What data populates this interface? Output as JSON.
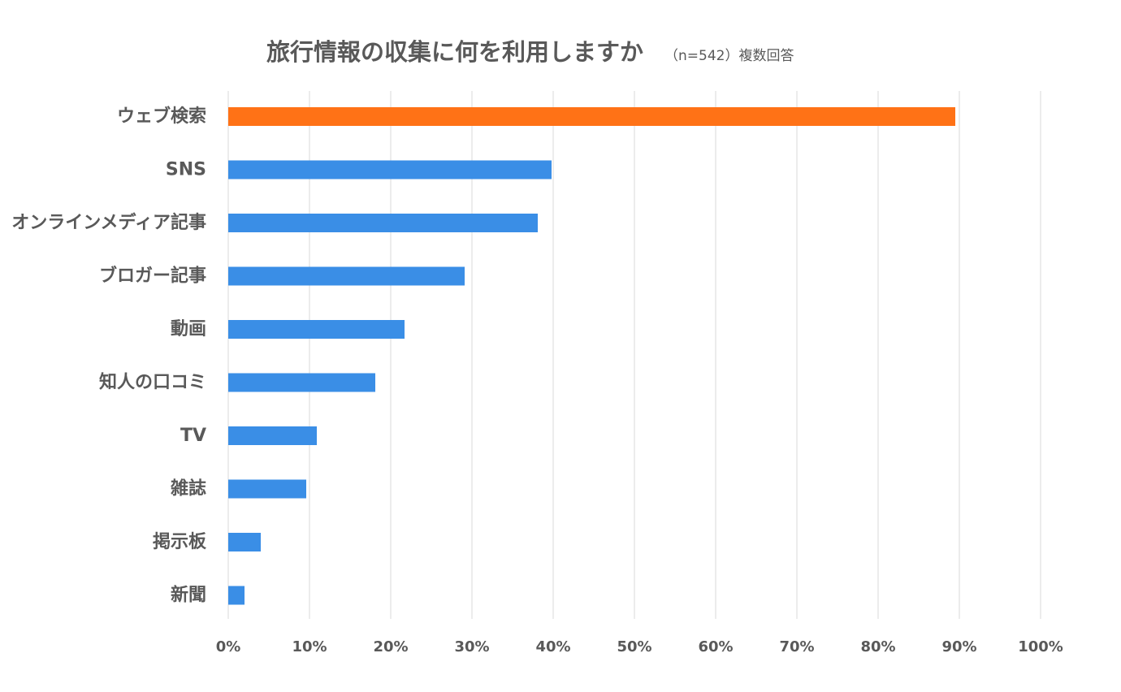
{
  "chart_data": {
    "type": "bar",
    "orientation": "horizontal",
    "title": "旅行情報の収集に何を利用しますか",
    "subtitle": "（n=542）複数回答",
    "categories": [
      "ウェブ検索",
      "SNS",
      "オンラインメディア記事",
      "ブロガー記事",
      "動画",
      "知人の口コミ",
      "TV",
      "雑誌",
      "掲示板",
      "新聞"
    ],
    "values": [
      89.5,
      39.8,
      38.1,
      29.1,
      21.7,
      18.1,
      10.9,
      9.6,
      4.0,
      2.0
    ],
    "highlight_index": 0,
    "colors": {
      "bar": "#3a8ee6",
      "highlight": "#ff7216",
      "grid": "#d9d9d9",
      "text": "#595959"
    },
    "xlim": [
      0,
      100
    ],
    "xticks": [
      "0%",
      "10%",
      "20%",
      "30%",
      "40%",
      "50%",
      "60%",
      "70%",
      "80%",
      "90%",
      "100%"
    ],
    "grid": true,
    "legend": "none"
  }
}
